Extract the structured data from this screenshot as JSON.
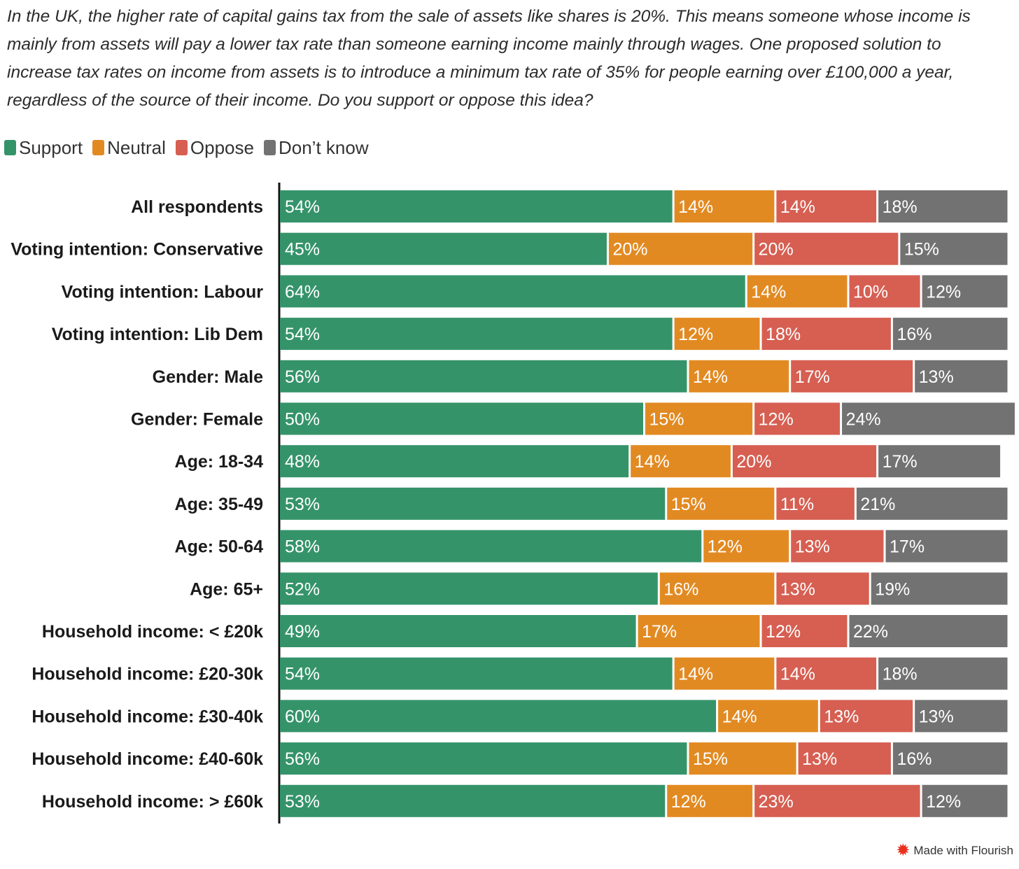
{
  "subtitle": "In the UK, the higher rate of capital gains tax from the sale of assets like shares is 20%. This means someone whose income is mainly from assets will pay a lower tax rate than someone earning income mainly through wages. One proposed solution to increase tax rates on income from assets is to introduce a minimum tax rate of 35% for people earning over £100,000 a year, regardless of the source of their income. Do you support or oppose this idea?",
  "footer": {
    "label": "Made with Flourish",
    "icon": "flourish-star-icon"
  },
  "chart_data": {
    "type": "bar",
    "orientation": "horizontal",
    "stacked": "100%",
    "legend_position": "top-left",
    "grid": false,
    "xlim": [
      0,
      100
    ],
    "value_suffix": "%",
    "categories": [
      "All respondents",
      "Voting intention: Conservative",
      "Voting intention: Labour",
      "Voting intention: Lib Dem",
      "Gender: Male",
      "Gender: Female",
      "Age: 18-34",
      "Age: 35-49",
      "Age: 50-64",
      "Age: 65+",
      "Household income: < £20k",
      "Household income: £20-30k",
      "Household income: £30-40k",
      "Household income: £40-60k",
      "Household income: > £60k"
    ],
    "series": [
      {
        "name": "Support",
        "color": "#35936a",
        "values": [
          54,
          45,
          64,
          54,
          56,
          50,
          48,
          53,
          58,
          52,
          49,
          54,
          60,
          56,
          53
        ]
      },
      {
        "name": "Neutral",
        "color": "#e28a22",
        "values": [
          14,
          20,
          14,
          12,
          14,
          15,
          14,
          15,
          12,
          16,
          17,
          14,
          14,
          15,
          12
        ]
      },
      {
        "name": "Oppose",
        "color": "#d65f52",
        "values": [
          14,
          20,
          10,
          18,
          17,
          12,
          20,
          11,
          13,
          13,
          12,
          14,
          13,
          13,
          23
        ]
      },
      {
        "name": "Don’t know",
        "color": "#727272",
        "values": [
          18,
          15,
          12,
          16,
          13,
          24,
          17,
          21,
          17,
          19,
          22,
          18,
          13,
          16,
          12
        ]
      }
    ]
  }
}
